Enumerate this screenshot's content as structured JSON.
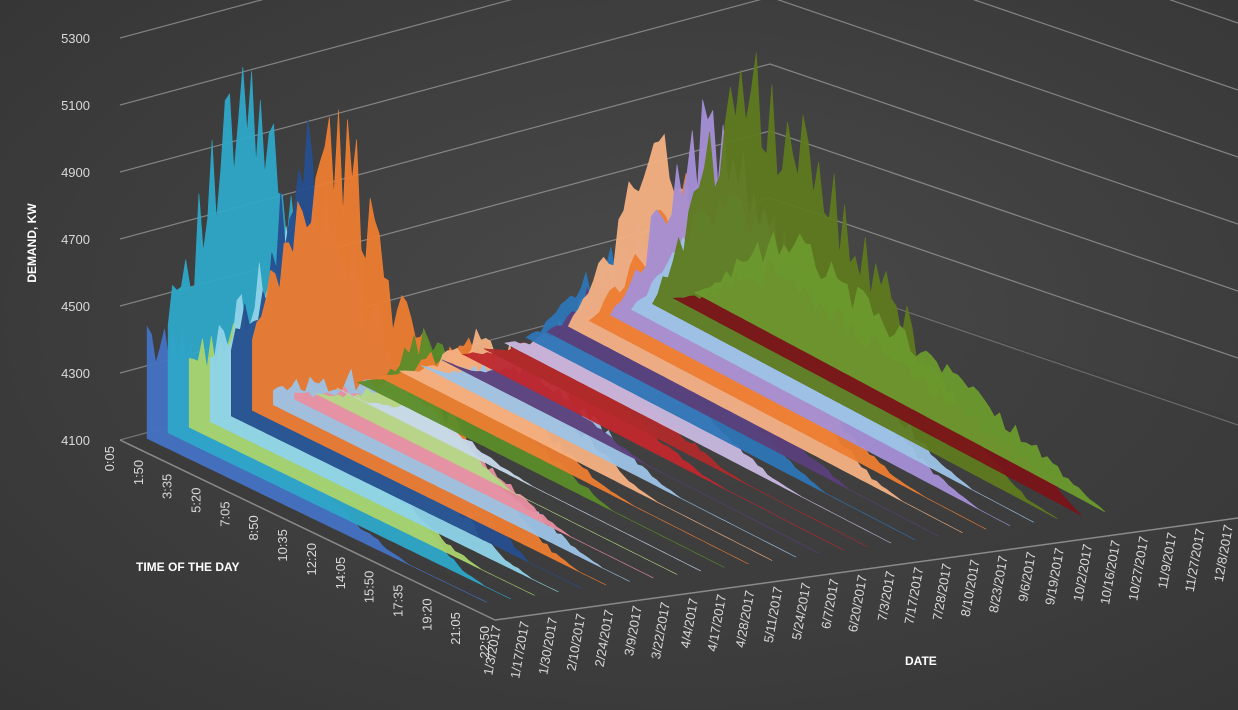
{
  "chart_data": {
    "type": "area",
    "title": "",
    "xlabel": "DATE",
    "ylabel": "TIME OF THE DAY",
    "zlabel": "DEMAND, KW",
    "zlim": [
      4100,
      5300
    ],
    "z_ticks": [
      "4100",
      "4300",
      "4500",
      "4700",
      "4900",
      "5100",
      "5300"
    ],
    "time_ticks": [
      "0:05",
      "1:50",
      "3:35",
      "5:20",
      "7:05",
      "8:50",
      "10:35",
      "12:20",
      "14:05",
      "15:50",
      "17:35",
      "19:20",
      "21:05",
      "22:50"
    ],
    "date_ticks": [
      "1/3/2017",
      "1/17/2017",
      "1/30/2017",
      "2/10/2017",
      "2/24/2017",
      "3/9/2017",
      "3/22/2017",
      "4/4/2017",
      "4/17/2017",
      "4/28/2017",
      "5/11/2017",
      "5/24/2017",
      "6/7/2017",
      "6/20/2017",
      "7/3/2017",
      "7/17/2017",
      "7/28/2017",
      "8/10/2017",
      "8/23/2017",
      "9/6/2017",
      "9/19/2017",
      "10/2/2017",
      "10/16/2017",
      "10/27/2017",
      "11/9/2017",
      "11/27/2017",
      "12/8/2017"
    ],
    "grid": true,
    "legend": "none",
    "series": [
      {
        "color": "#4472c4",
        "values": [
          4380,
          4420,
          4400,
          4350,
          4300,
          4280,
          4250,
          4200,
          4150,
          4120,
          4100,
          4100,
          4100,
          4100
        ]
      },
      {
        "color": "#2ea6c8",
        "values": [
          4500,
          4700,
          4950,
          5200,
          5000,
          4800,
          4600,
          4450,
          4350,
          4250,
          4180,
          4120,
          4100,
          4100
        ]
      },
      {
        "color": "#aad36b",
        "values": [
          4300,
          4380,
          4450,
          4500,
          4400,
          4350,
          4300,
          4250,
          4200,
          4150,
          4120,
          4100,
          4100,
          4100
        ]
      },
      {
        "color": "#8fd3e8",
        "values": [
          4300,
          4450,
          4600,
          4680,
          4650,
          4500,
          4420,
          4350,
          4280,
          4220,
          4160,
          4120,
          4100,
          4100
        ]
      },
      {
        "color": "#264f8f",
        "values": [
          4300,
          4500,
          4750,
          4950,
          4850,
          4650,
          4500,
          4380,
          4280,
          4200,
          4150,
          4100,
          4100,
          4100
        ]
      },
      {
        "color": "#ed7d31",
        "values": [
          4300,
          4550,
          4800,
          5000,
          4900,
          4700,
          4550,
          4420,
          4300,
          4230,
          4170,
          4120,
          4100,
          4100
        ]
      },
      {
        "color": "#9dc3e6",
        "values": [
          4150,
          4200,
          4250,
          4300,
          4350,
          4320,
          4280,
          4240,
          4200,
          4180,
          4150,
          4120,
          4100,
          4100
        ]
      },
      {
        "color": "#e88fa0",
        "values": [
          4120,
          4150,
          4200,
          4250,
          4280,
          4260,
          4220,
          4180,
          4150,
          4120,
          4100,
          4100,
          4100,
          4100
        ]
      },
      {
        "color": "#b4d887",
        "values": [
          4100,
          4130,
          4200,
          4260,
          4230,
          4180,
          4140,
          4100,
          4100,
          4100,
          4100,
          4100,
          4100,
          4100
        ]
      },
      {
        "color": "#c7d9ea",
        "values": [
          4100,
          4100,
          4130,
          4180,
          4160,
          4130,
          4110,
          4100,
          4100,
          4100,
          4100,
          4100,
          4100,
          4100
        ]
      },
      {
        "color": "#5b8c2a",
        "values": [
          4100,
          4150,
          4300,
          4350,
          4300,
          4250,
          4200,
          4160,
          4130,
          4100,
          4100,
          4100,
          4100,
          4100
        ]
      },
      {
        "color": "#ed7d31",
        "values": [
          4100,
          4150,
          4250,
          4320,
          4280,
          4230,
          4180,
          4140,
          4110,
          4100,
          4100,
          4100,
          4100,
          4100
        ]
      },
      {
        "color": "#f4b183",
        "values": [
          4100,
          4150,
          4250,
          4330,
          4300,
          4250,
          4200,
          4160,
          4120,
          4100,
          4100,
          4100,
          4100,
          4100
        ]
      },
      {
        "color": "#9dc3e6",
        "values": [
          4100,
          4120,
          4180,
          4250,
          4280,
          4250,
          4200,
          4160,
          4120,
          4100,
          4100,
          4100,
          4100,
          4100
        ]
      },
      {
        "color": "#5b3f7a",
        "values": [
          4100,
          4110,
          4150,
          4200,
          4180,
          4150,
          4120,
          4100,
          4100,
          4100,
          4100,
          4100,
          4100,
          4100
        ]
      },
      {
        "color": "#c0282d",
        "values": [
          4100,
          4150,
          4200,
          4250,
          4230,
          4200,
          4170,
          4140,
          4110,
          4100,
          4100,
          4100,
          4100,
          4100
        ]
      },
      {
        "color": "#b02a2a",
        "values": [
          4100,
          4140,
          4220,
          4280,
          4250,
          4210,
          4170,
          4140,
          4110,
          4100,
          4100,
          4100,
          4100,
          4100
        ]
      },
      {
        "color": "#c8b8e0",
        "values": [
          4100,
          4150,
          4250,
          4350,
          4320,
          4280,
          4230,
          4180,
          4140,
          4110,
          4100,
          4100,
          4100,
          4100
        ]
      },
      {
        "color": "#2e75b6",
        "values": [
          4100,
          4200,
          4350,
          4480,
          4420,
          4360,
          4300,
          4240,
          4180,
          4130,
          4100,
          4100,
          4100,
          4100
        ]
      },
      {
        "color": "#5b3f7a",
        "values": [
          4100,
          4200,
          4380,
          4500,
          4450,
          4380,
          4300,
          4230,
          4170,
          4130,
          4100,
          4100,
          4100,
          4100
        ]
      },
      {
        "color": "#f4b183",
        "values": [
          4100,
          4300,
          4550,
          4720,
          4650,
          4550,
          4450,
          4350,
          4250,
          4180,
          4120,
          4100,
          4100,
          4100
        ]
      },
      {
        "color": "#ed7d31",
        "values": [
          4100,
          4250,
          4450,
          4600,
          4550,
          4450,
          4350,
          4270,
          4200,
          4150,
          4110,
          4100,
          4100,
          4100
        ]
      },
      {
        "color": "#a58fd6",
        "values": [
          4100,
          4300,
          4600,
          4750,
          4700,
          4600,
          4500,
          4400,
          4300,
          4220,
          4160,
          4120,
          4100,
          4100
        ]
      },
      {
        "color": "#9dc3e6",
        "values": [
          4100,
          4250,
          4450,
          4580,
          4550,
          4480,
          4400,
          4320,
          4250,
          4180,
          4130,
          4100,
          4100,
          4100
        ]
      },
      {
        "color": "#5e7a1e",
        "values": [
          4100,
          4350,
          4650,
          4900,
          4820,
          4750,
          4650,
          4550,
          4450,
          4350,
          4250,
          4170,
          4110,
          4100
        ]
      },
      {
        "color": "#7a1418",
        "values": [
          4100,
          4150,
          4250,
          4330,
          4320,
          4300,
          4280,
          4260,
          4240,
          4220,
          4200,
          4180,
          4150,
          4100
        ]
      },
      {
        "color": "#6b9a2e",
        "values": [
          4100,
          4200,
          4320,
          4400,
          4380,
          4350,
          4320,
          4290,
          4260,
          4230,
          4200,
          4170,
          4130,
          4100
        ]
      }
    ]
  }
}
